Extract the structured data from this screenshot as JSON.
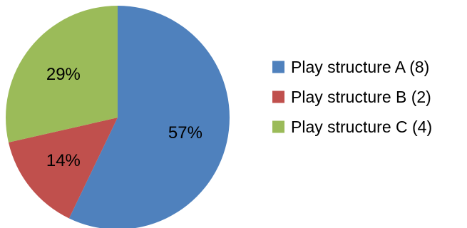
{
  "chart_data": {
    "type": "pie",
    "title": "",
    "legend_position": "right",
    "slices": [
      {
        "label": "Play structure A (8)",
        "value": 8,
        "percent_label": "57%",
        "color": "#4f81bd"
      },
      {
        "label": "Play structure B (2)",
        "value": 2,
        "percent_label": "14%",
        "color": "#c0504d"
      },
      {
        "label": "Play structure C (4)",
        "value": 4,
        "percent_label": "29%",
        "color": "#9bbb59"
      }
    ]
  }
}
